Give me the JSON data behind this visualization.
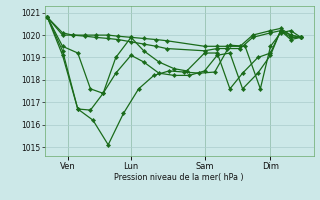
{
  "background_color": "#cce8e8",
  "grid_color": "#aacccc",
  "line_color": "#1a6b1a",
  "marker_color": "#1a6b1a",
  "xlabel": "Pression niveau de la mer( hPa )",
  "ylim": [
    1014.6,
    1021.3
  ],
  "yticks": [
    1015,
    1016,
    1017,
    1018,
    1019,
    1020,
    1021
  ],
  "xtick_labels": [
    "Ven",
    "Lun",
    "Sam",
    "Dim"
  ],
  "xtick_positions": [
    0.08,
    0.33,
    0.62,
    0.88
  ],
  "series": [
    {
      "x": [
        0.0,
        0.06,
        0.1,
        0.15,
        0.19,
        0.24,
        0.28,
        0.33,
        0.38,
        0.43,
        0.47,
        0.62,
        0.67,
        0.71,
        0.76,
        0.81,
        0.88,
        0.92,
        0.96,
        1.0
      ],
      "y": [
        1020.8,
        1020.1,
        1020.0,
        1020.0,
        1020.0,
        1020.0,
        1019.95,
        1019.9,
        1019.85,
        1019.8,
        1019.75,
        1019.5,
        1019.5,
        1019.5,
        1019.5,
        1020.0,
        1020.2,
        1020.3,
        1020.0,
        1019.9
      ]
    },
    {
      "x": [
        0.0,
        0.06,
        0.1,
        0.15,
        0.19,
        0.24,
        0.28,
        0.33,
        0.38,
        0.43,
        0.47,
        0.62,
        0.67,
        0.71,
        0.76,
        0.81,
        0.88,
        0.92,
        0.96,
        1.0
      ],
      "y": [
        1020.8,
        1020.0,
        1020.0,
        1019.95,
        1019.9,
        1019.85,
        1019.8,
        1019.7,
        1019.6,
        1019.5,
        1019.4,
        1019.3,
        1019.4,
        1019.4,
        1019.4,
        1019.9,
        1020.1,
        1020.2,
        1019.9,
        1019.9
      ]
    },
    {
      "x": [
        0.0,
        0.06,
        0.12,
        0.17,
        0.22,
        0.27,
        0.33,
        0.38,
        0.44,
        0.5,
        0.55,
        0.62,
        0.67,
        0.72,
        0.77,
        0.83,
        0.88,
        0.92,
        0.96,
        1.0
      ],
      "y": [
        1020.8,
        1019.5,
        1019.2,
        1017.6,
        1017.4,
        1019.0,
        1019.9,
        1019.3,
        1018.8,
        1018.5,
        1018.4,
        1019.2,
        1019.2,
        1017.6,
        1018.3,
        1019.0,
        1019.2,
        1020.2,
        1020.0,
        1019.9
      ]
    },
    {
      "x": [
        0.0,
        0.06,
        0.12,
        0.17,
        0.22,
        0.27,
        0.33,
        0.38,
        0.44,
        0.5,
        0.56,
        0.62,
        0.67,
        0.72,
        0.77,
        0.83,
        0.88,
        0.92,
        0.96,
        1.0
      ],
      "y": [
        1020.8,
        1019.3,
        1016.7,
        1016.65,
        1017.4,
        1018.3,
        1019.1,
        1018.8,
        1018.3,
        1018.2,
        1018.2,
        1018.4,
        1019.1,
        1019.2,
        1017.6,
        1018.3,
        1019.1,
        1020.2,
        1019.8,
        1019.9
      ]
    },
    {
      "x": [
        0.0,
        0.06,
        0.12,
        0.18,
        0.24,
        0.3,
        0.36,
        0.42,
        0.48,
        0.54,
        0.6,
        0.66,
        0.72,
        0.78,
        0.84,
        0.88,
        0.92,
        0.96,
        1.0
      ],
      "y": [
        1020.8,
        1019.1,
        1016.7,
        1016.2,
        1015.1,
        1016.5,
        1017.6,
        1018.2,
        1018.4,
        1018.35,
        1018.3,
        1018.35,
        1019.55,
        1019.5,
        1017.6,
        1019.5,
        1020.1,
        1020.2,
        1019.9
      ]
    }
  ]
}
